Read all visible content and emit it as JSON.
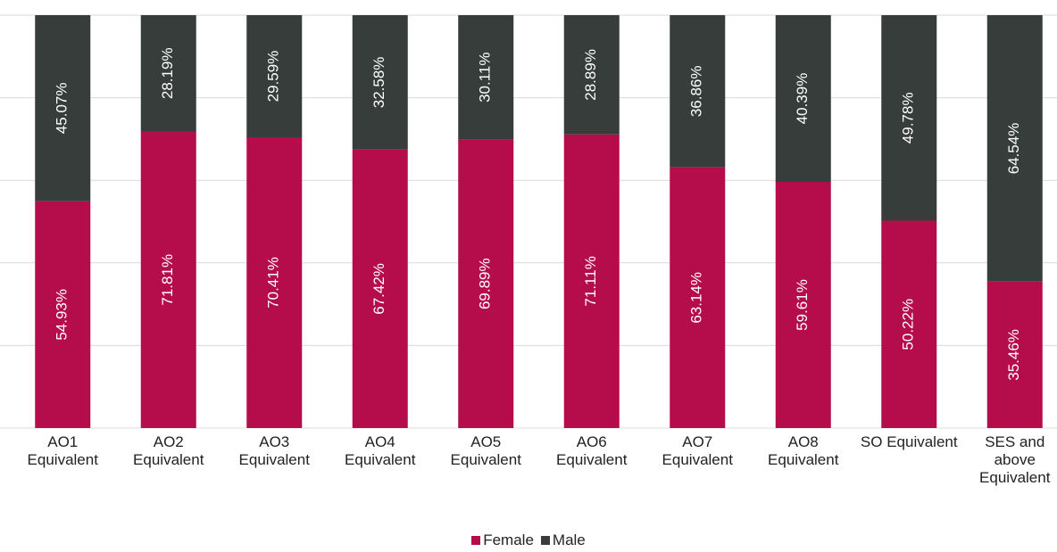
{
  "chart_data": {
    "type": "stacked_bar",
    "categories": [
      "AO1 Equivalent",
      "AO2 Equivalent",
      "AO3 Equivalent",
      "AO4 Equivalent",
      "AO5 Equivalent",
      "AO6 Equivalent",
      "AO7 Equivalent",
      "AO8 Equivalent",
      "SO Equivalent",
      "SES and above Equivalent"
    ],
    "series": [
      {
        "name": "Female",
        "color": "#b50c4c",
        "values": [
          54.93,
          71.81,
          70.41,
          67.42,
          69.89,
          71.11,
          63.14,
          59.61,
          50.22,
          35.46
        ],
        "value_labels": [
          "54.93%",
          "71.81%",
          "70.41%",
          "67.42%",
          "69.89%",
          "71.11%",
          "63.14%",
          "59.61%",
          "50.22%",
          "35.46%"
        ]
      },
      {
        "name": "Male",
        "color": "#373d3a",
        "values": [
          45.07,
          28.19,
          29.59,
          32.58,
          30.11,
          28.89,
          36.86,
          40.39,
          49.78,
          64.54
        ],
        "value_labels": [
          "45.07%",
          "28.19%",
          "29.59%",
          "32.58%",
          "30.11%",
          "28.89%",
          "36.86%",
          "40.39%",
          "49.78%",
          "64.54%"
        ]
      }
    ],
    "ylim": [
      0,
      100
    ],
    "yticks": [
      0,
      20,
      40,
      60,
      80,
      100
    ],
    "ytick_labels": false,
    "grid": true,
    "legend": "bottom"
  }
}
